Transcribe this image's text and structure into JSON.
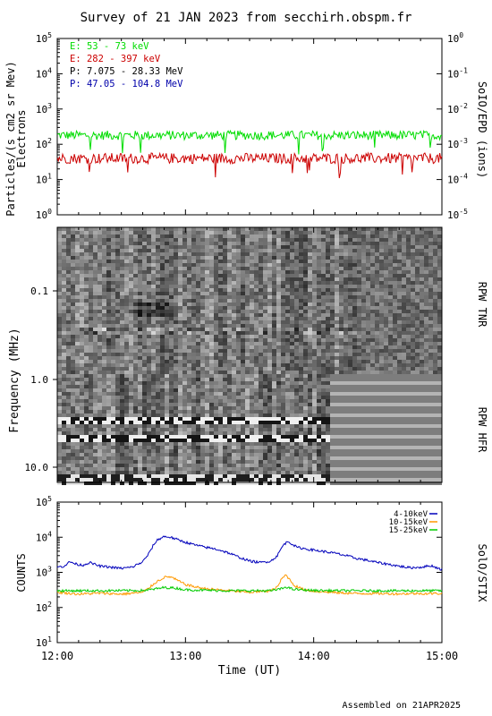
{
  "title": "Survey of 21 JAN 2023 from secchirh.obspm.fr",
  "footer": "Assembled on 21APR2025",
  "colors": {
    "green": "#00dd00",
    "red": "#cc0000",
    "black": "#000000",
    "blue": "#0000aa",
    "orange": "#ff9900",
    "stix_blue": "#0000bb",
    "stix_green": "#00cc00"
  },
  "chart_data": [
    {
      "type": "line",
      "panel": "SolO/EPD",
      "ylabel_left": "Particles/(s cm2 sr Mev)",
      "ylabel_left2": "Electrons",
      "ylabel_right": "SoIO/EPD (ions)",
      "y_scale": "log",
      "ylim": [
        1,
        100000
      ],
      "yticks": [
        "10^0",
        "10^1",
        "10^2",
        "10^3",
        "10^4",
        "10^5"
      ],
      "ylim_right": [
        1e-05,
        1
      ],
      "yticks_right": [
        "10^-5",
        "10^-4",
        "10^-3",
        "10^-2",
        "10^-1",
        "10^0"
      ],
      "xlim": [
        "12:00",
        "15:00"
      ],
      "legend": [
        {
          "label": "E: 53 - 73 keV",
          "color": "#00dd00"
        },
        {
          "label": "E: 282 - 397 keV",
          "color": "#cc0000"
        },
        {
          "label": "P: 7.075 - 28.33 MeV",
          "color": "#000000"
        },
        {
          "label": "P: 47.05 - 104.8 MeV",
          "color": "#0000aa"
        }
      ],
      "series": [
        {
          "name": "E: 53 - 73 keV",
          "color": "#00dd00",
          "level": 180,
          "noise": 0.13
        },
        {
          "name": "E: 282 - 397 keV",
          "color": "#cc0000",
          "level": 40,
          "noise": 0.15
        }
      ]
    },
    {
      "type": "heatmap",
      "panel": "RPW TNR",
      "ylabel_right": "RPW TNR",
      "y_scale": "log",
      "ylim": [
        0.02,
        1.0
      ],
      "yticks": [
        "0.1",
        "1.0"
      ],
      "xlim": [
        "12:00",
        "15:00"
      ]
    },
    {
      "type": "heatmap",
      "panel": "RPW HFR",
      "ylabel_left": "Frequency (MHz)",
      "ylabel_right": "RPW HFR",
      "y_scale": "log",
      "ylim": [
        1.0,
        12.0
      ],
      "yticks": [
        "1.0",
        "10.0"
      ],
      "xlim": [
        "12:00",
        "15:00"
      ]
    },
    {
      "type": "line",
      "panel": "SolO/STIX",
      "ylabel_left": "COUNTS",
      "ylabel_right": "SolO/STIX",
      "y_scale": "log",
      "ylim": [
        10,
        100000
      ],
      "yticks": [
        "10^1",
        "10^2",
        "10^3",
        "10^4",
        "10^5"
      ],
      "xlim": [
        "12:00",
        "15:00"
      ],
      "xticks": [
        "12:00",
        "13:00",
        "14:00",
        "15:00"
      ],
      "xlabel": "Time (UT)",
      "legend": [
        {
          "label": "4-10keV",
          "color": "#0000bb"
        },
        {
          "label": "10-15keV",
          "color": "#ff9900"
        },
        {
          "label": "15-25keV",
          "color": "#00cc00"
        }
      ],
      "series": [
        {
          "name": "4-10keV",
          "color": "#0000bb",
          "x": [
            0,
            3,
            6,
            9,
            12,
            15,
            20,
            25,
            30,
            35,
            40,
            43,
            45,
            47,
            50,
            53,
            56,
            60,
            65,
            70,
            75,
            80,
            85,
            90,
            95,
            100,
            103,
            105,
            106,
            108,
            110,
            112,
            115,
            120,
            125,
            130,
            135,
            140,
            145,
            150,
            155,
            160,
            165,
            170,
            175,
            180
          ],
          "values": [
            1400,
            1500,
            2000,
            1700,
            1600,
            1900,
            1500,
            1400,
            1300,
            1400,
            2000,
            3500,
            6000,
            8500,
            10500,
            10000,
            8600,
            7200,
            5900,
            5100,
            4500,
            3600,
            2700,
            2100,
            1900,
            2100,
            3000,
            5000,
            6200,
            7600,
            6400,
            5200,
            4800,
            4300,
            3900,
            3500,
            3000,
            2500,
            2200,
            1900,
            1700,
            1500,
            1350,
            1400,
            1550,
            1200
          ]
        },
        {
          "name": "10-15keV",
          "color": "#ff9900",
          "x": [
            0,
            10,
            20,
            30,
            40,
            43,
            46,
            50,
            53,
            56,
            60,
            65,
            70,
            80,
            90,
            100,
            103,
            105,
            107,
            109,
            111,
            115,
            120,
            130,
            140,
            150,
            160,
            170,
            180
          ],
          "values": [
            270,
            240,
            255,
            240,
            270,
            360,
            520,
            720,
            750,
            600,
            450,
            380,
            340,
            300,
            270,
            300,
            380,
            650,
            850,
            600,
            420,
            330,
            290,
            265,
            250,
            250,
            245,
            250,
            250
          ]
        },
        {
          "name": "15-25keV",
          "color": "#00cc00",
          "x": [
            0,
            20,
            40,
            45,
            50,
            55,
            60,
            80,
            100,
            105,
            107,
            110,
            120,
            140,
            160,
            180
          ],
          "values": [
            300,
            300,
            305,
            330,
            370,
            360,
            320,
            300,
            300,
            340,
            390,
            330,
            305,
            300,
            300,
            300
          ]
        }
      ]
    }
  ]
}
